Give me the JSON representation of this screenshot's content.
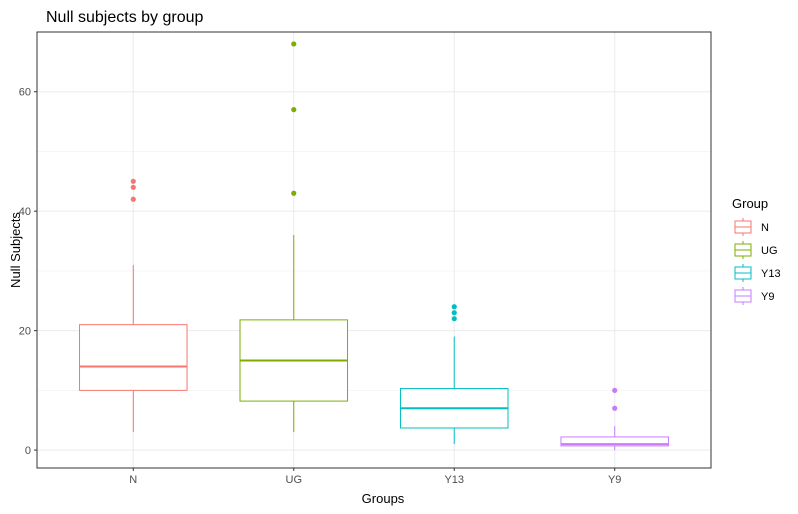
{
  "chart_data": {
    "type": "boxplot",
    "title": "Null subjects by group",
    "xlabel": "Groups",
    "ylabel": "Null Subjects",
    "ylim": [
      -3,
      70
    ],
    "yticks": [
      0,
      20,
      40,
      60
    ],
    "grid": true,
    "legend": {
      "title": "Group",
      "position": "right"
    },
    "categories": [
      "N",
      "UG",
      "Y13",
      "Y9"
    ],
    "series": [
      {
        "name": "N",
        "color": "#F8766D",
        "whisker_low": 3,
        "q1": 10,
        "median": 14,
        "q3": 21,
        "whisker_high": 31,
        "outliers": [
          42,
          44,
          45
        ]
      },
      {
        "name": "UG",
        "color": "#7CAE00",
        "whisker_low": 3,
        "q1": 8.2,
        "median": 15,
        "q3": 21.8,
        "whisker_high": 36,
        "outliers": [
          43,
          57,
          68
        ]
      },
      {
        "name": "Y13",
        "color": "#00BFC4",
        "whisker_low": 1,
        "q1": 3.7,
        "median": 7,
        "q3": 10.3,
        "whisker_high": 19,
        "outliers": [
          22,
          23,
          24
        ]
      },
      {
        "name": "Y9",
        "color": "#C77CFF",
        "whisker_low": 0,
        "q1": 0.7,
        "median": 1,
        "q3": 2.2,
        "whisker_high": 4,
        "outliers": [
          7,
          10
        ]
      }
    ]
  }
}
